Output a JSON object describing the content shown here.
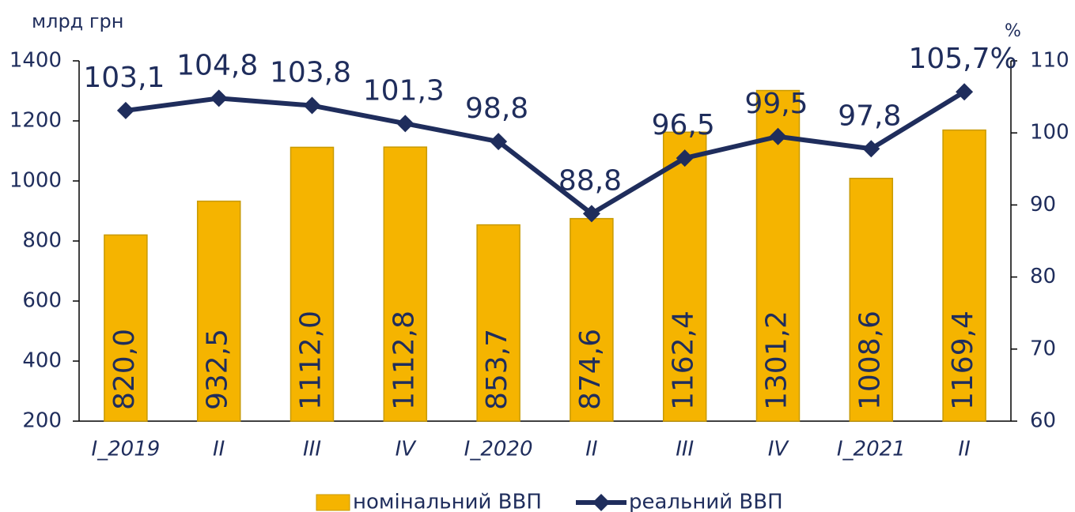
{
  "chart_data": {
    "type": "bar",
    "ylabel": "млрд грн",
    "y2label": "%",
    "categories": [
      "I_2019",
      "II",
      "III",
      "IV",
      "I_2020",
      "II",
      "III",
      "IV",
      "I_2021",
      "II"
    ],
    "series": [
      {
        "name": "номінальний ВВП",
        "type": "bar",
        "color": "#f5b400",
        "values": [
          820.0,
          932.5,
          1112.0,
          1112.8,
          853.7,
          874.6,
          1162.4,
          1301.2,
          1008.6,
          1169.4
        ],
        "value_labels": [
          "820,0",
          "932,5",
          "1112,0",
          "1112,8",
          "853,7",
          "874,6",
          "1162,4",
          "1301,2",
          "1008,6",
          "1169,4"
        ]
      },
      {
        "name": "реальний ВВП",
        "type": "line",
        "axis": "y2",
        "color": "#1f2d5c",
        "values": [
          103.1,
          104.8,
          103.8,
          101.3,
          98.8,
          88.8,
          96.5,
          99.5,
          97.8,
          105.7
        ],
        "value_labels": [
          "103,1",
          "104,8",
          "103,8",
          "101,3",
          "98,8",
          "88,8",
          "96,5",
          "99,5",
          "97,8",
          "105,7%"
        ]
      }
    ],
    "ylim": [
      200,
      1400
    ],
    "yticks": [
      200,
      400,
      600,
      800,
      1000,
      1200,
      1400
    ],
    "y2lim": [
      60,
      110
    ],
    "y2ticks": [
      60,
      70,
      80,
      90,
      100,
      110
    ],
    "legend": "bottom"
  }
}
